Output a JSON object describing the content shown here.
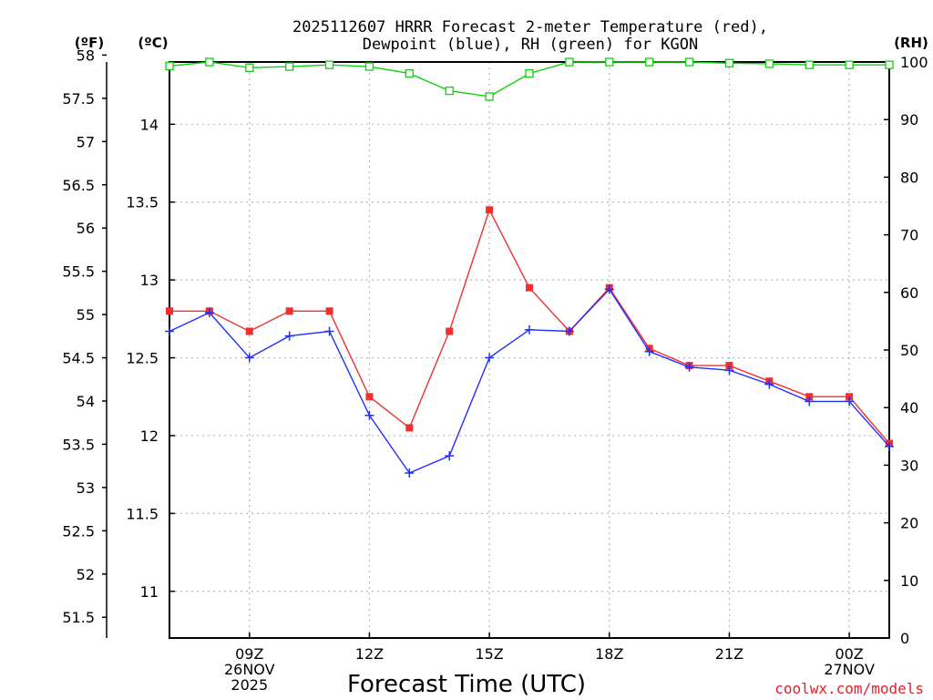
{
  "chart_data": {
    "type": "line",
    "title_line1": "2025112607 HRRR Forecast 2-meter Temperature (red),",
    "title_line2": "Dewpoint (blue), RH (green) for KGON",
    "xlabel": "Forecast Time (UTC)",
    "credit": "coolwx.com/models",
    "unit_labels": {
      "fahrenheit": "(ºF)",
      "celsius": "(ºC)",
      "rh": "(RH)"
    },
    "x": [
      7,
      8,
      9,
      10,
      11,
      12,
      13,
      14,
      15,
      16,
      17,
      18,
      19,
      20,
      21,
      22,
      23,
      24,
      25
    ],
    "xlim": [
      7,
      25
    ],
    "x_ticks": [
      {
        "x": 9,
        "lines": [
          "09Z",
          "26NOV",
          "2025"
        ]
      },
      {
        "x": 12,
        "lines": [
          "12Z"
        ]
      },
      {
        "x": 15,
        "lines": [
          "15Z"
        ]
      },
      {
        "x": 18,
        "lines": [
          "18Z"
        ]
      },
      {
        "x": 21,
        "lines": [
          "21Z"
        ]
      },
      {
        "x": 24,
        "lines": [
          "00Z",
          "27NOV"
        ]
      }
    ],
    "celsius_axis": {
      "ylim": [
        10.7,
        14.4
      ],
      "ticks": [
        "11",
        "11.5",
        "12",
        "12.5",
        "13",
        "13.5",
        "14"
      ]
    },
    "fahrenheit_axis": {
      "ylim": [
        51.26,
        57.92
      ],
      "ticks": [
        "51.5",
        "52",
        "52.5",
        "53",
        "53.5",
        "54",
        "54.5",
        "55",
        "55.5",
        "56",
        "56.5",
        "57",
        "57.5",
        "58"
      ]
    },
    "rh_axis": {
      "ylim": [
        0,
        100
      ],
      "ticks": [
        "0",
        "10",
        "20",
        "30",
        "40",
        "50",
        "60",
        "70",
        "80",
        "90",
        "100"
      ]
    },
    "series": [
      {
        "name": "Temperature",
        "color": "#f0302f",
        "marker": "filled-square",
        "axis": "celsius",
        "values": [
          12.8,
          12.8,
          12.67,
          12.8,
          12.8,
          12.25,
          12.05,
          12.67,
          13.45,
          12.95,
          12.67,
          12.95,
          12.56,
          12.45,
          12.45,
          12.35,
          12.25,
          12.25,
          11.95
        ]
      },
      {
        "name": "Dewpoint",
        "color": "#2130ff",
        "marker": "plus",
        "axis": "celsius",
        "values": [
          12.67,
          12.79,
          12.5,
          12.64,
          12.67,
          12.13,
          11.76,
          11.87,
          12.5,
          12.68,
          12.67,
          12.94,
          12.54,
          12.44,
          12.42,
          12.33,
          12.22,
          12.22,
          11.93
        ]
      },
      {
        "name": "RH",
        "color": "#10d010",
        "marker": "open-square",
        "axis": "rh",
        "values": [
          99.3,
          100,
          99,
          99.2,
          99.5,
          99.2,
          98,
          95,
          94,
          98,
          100,
          100,
          100,
          100,
          99.8,
          99.7,
          99.5,
          99.5,
          99.5
        ]
      }
    ],
    "grid": true
  }
}
